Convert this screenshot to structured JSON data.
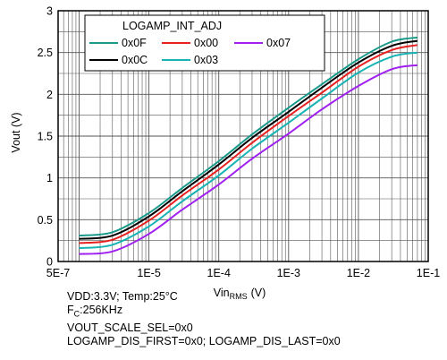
{
  "chart_data": {
    "type": "line",
    "xscale": "log",
    "xlim": [
      5e-07,
      0.1
    ],
    "ylim": [
      0,
      3
    ],
    "xticks": [
      {
        "value": 5e-07,
        "label": "5E-7"
      },
      {
        "value": 1e-05,
        "label": "1E-5"
      },
      {
        "value": 0.0001,
        "label": "1E-4"
      },
      {
        "value": 0.001,
        "label": "1E-3"
      },
      {
        "value": 0.01,
        "label": "1E-2"
      },
      {
        "value": 0.1,
        "label": "1E-1"
      }
    ],
    "yticks": [
      {
        "value": 0,
        "label": "0"
      },
      {
        "value": 0.5,
        "label": "0.5"
      },
      {
        "value": 1,
        "label": "1"
      },
      {
        "value": 1.5,
        "label": "1.5"
      },
      {
        "value": 2,
        "label": "2"
      },
      {
        "value": 2.5,
        "label": "2.5"
      },
      {
        "value": 3,
        "label": "3"
      }
    ],
    "xlabel_main": "Vin",
    "xlabel_sub": "RMS",
    "xlabel_unit": "(V)",
    "ylabel": "Vout (V)",
    "grid": true,
    "legend": {
      "title": "LOGAMP_INT_ADJ",
      "placement": "top-left"
    },
    "series": [
      {
        "name": "0x0F",
        "color": "#1a9a8a",
        "x": [
          1e-06,
          3e-06,
          1e-05,
          3e-05,
          0.0001,
          0.0003,
          0.001,
          0.003,
          0.01,
          0.03,
          0.07
        ],
        "y": [
          0.31,
          0.35,
          0.58,
          0.88,
          1.2,
          1.52,
          1.84,
          2.12,
          2.42,
          2.63,
          2.68
        ]
      },
      {
        "name": "0x0C",
        "color": "#000000",
        "x": [
          1e-06,
          3e-06,
          1e-05,
          3e-05,
          0.0001,
          0.0003,
          0.001,
          0.003,
          0.01,
          0.03,
          0.07
        ],
        "y": [
          0.27,
          0.31,
          0.54,
          0.84,
          1.16,
          1.48,
          1.79,
          2.08,
          2.38,
          2.58,
          2.64
        ]
      },
      {
        "name": "0x00",
        "color": "#e82020",
        "x": [
          1e-06,
          3e-06,
          1e-05,
          3e-05,
          0.0001,
          0.0003,
          0.001,
          0.003,
          0.01,
          0.03,
          0.07
        ],
        "y": [
          0.22,
          0.26,
          0.49,
          0.79,
          1.1,
          1.42,
          1.74,
          2.02,
          2.33,
          2.53,
          2.59
        ]
      },
      {
        "name": "0x03",
        "color": "#18b4b4",
        "x": [
          1e-06,
          3e-06,
          1e-05,
          3e-05,
          0.0001,
          0.0003,
          0.001,
          0.003,
          0.01,
          0.03,
          0.07
        ],
        "y": [
          0.16,
          0.2,
          0.42,
          0.72,
          1.03,
          1.35,
          1.66,
          1.95,
          2.26,
          2.45,
          2.5
        ]
      },
      {
        "name": "0x07",
        "color": "#a020f0",
        "x": [
          1e-06,
          3e-06,
          1e-05,
          3e-05,
          0.0001,
          0.0003,
          0.001,
          0.003,
          0.01,
          0.03,
          0.07
        ],
        "y": [
          0.09,
          0.12,
          0.33,
          0.62,
          0.92,
          1.23,
          1.53,
          1.82,
          2.1,
          2.3,
          2.35
        ]
      }
    ]
  },
  "notes": {
    "line1": "VDD:3.3V; Temp:25°C",
    "line2_main": "F",
    "line2_sub": "C",
    "line2_rest": ":256KHz",
    "line3": "VOUT_SCALE_SEL=0x0",
    "line4": "LOGAMP_DIS_FIRST=0x0; LOGAMP_DIS_LAST=0x0"
  }
}
